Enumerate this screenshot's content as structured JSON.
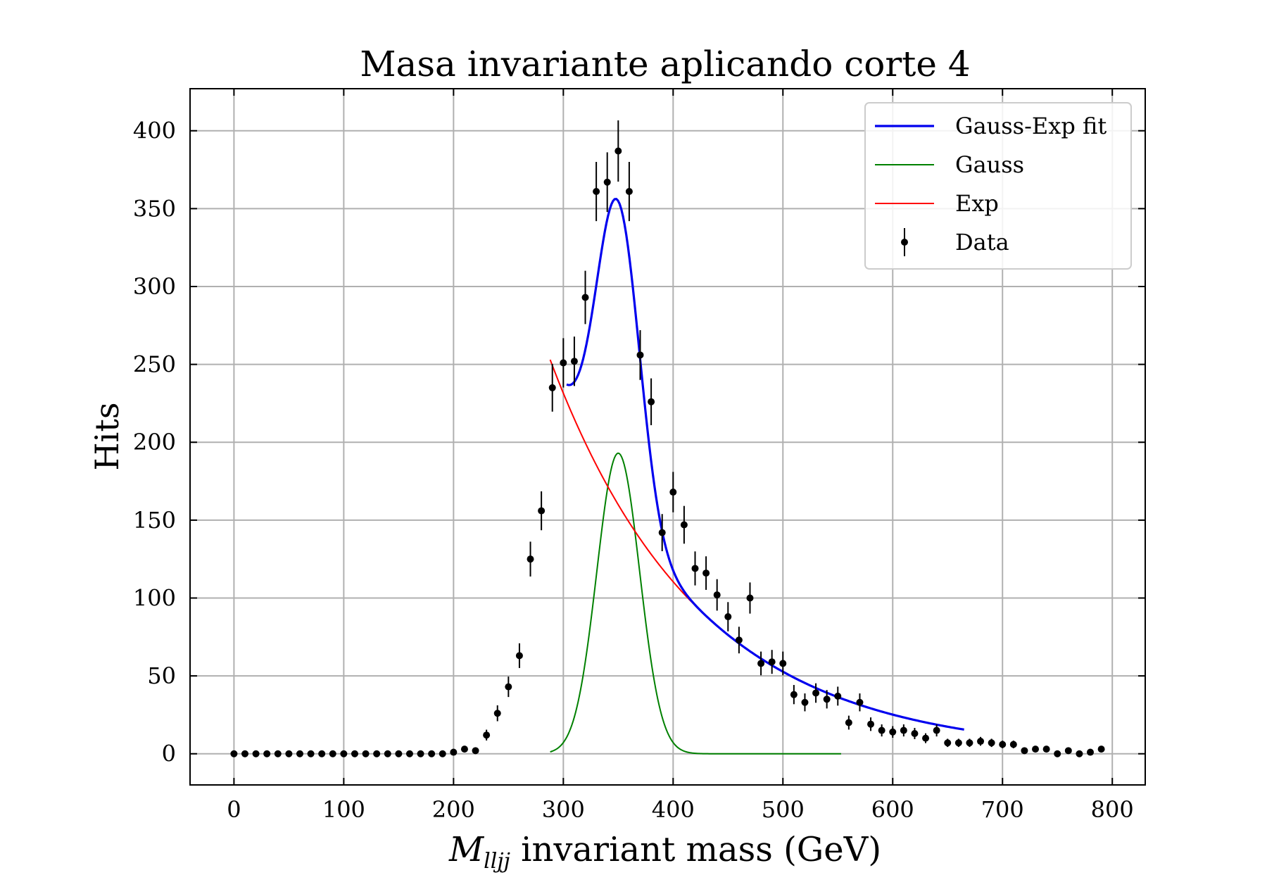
{
  "chart_data": {
    "type": "scatter",
    "title": "Masa invariante aplicando corte 4",
    "xlabel": {
      "symbol": "M",
      "subscript": "lljj",
      "text": " invariant mass (GeV)"
    },
    "ylabel": "Hits",
    "xlim": [
      -40,
      830
    ],
    "ylim": [
      -20,
      427
    ],
    "xticks": [
      0,
      100,
      200,
      300,
      400,
      500,
      600,
      700,
      800
    ],
    "xtick_labels": [
      "0",
      "100",
      "200",
      "300",
      "400",
      "500",
      "600",
      "700",
      "800"
    ],
    "yticks": [
      0,
      50,
      100,
      150,
      200,
      250,
      300,
      350,
      400
    ],
    "ytick_labels": [
      "0",
      "50",
      "100",
      "150",
      "200",
      "250",
      "300",
      "350",
      "400"
    ],
    "grid": true,
    "legend_position": "top-right",
    "legend": [
      {
        "label": "Gauss-Exp fit",
        "kind": "line",
        "color": "#0000ee"
      },
      {
        "label": "Gauss",
        "kind": "line",
        "color": "#008000"
      },
      {
        "label": "Exp",
        "kind": "line",
        "color": "#ff0000"
      },
      {
        "label": "Data",
        "kind": "errorbar",
        "color": "#000000"
      }
    ],
    "series": [
      {
        "name": "Data",
        "type": "errorbar",
        "x": [
          0,
          10,
          20,
          30,
          40,
          50,
          60,
          70,
          80,
          90,
          100,
          110,
          120,
          130,
          140,
          150,
          160,
          170,
          180,
          190,
          200,
          210,
          220,
          230,
          240,
          250,
          260,
          270,
          280,
          290,
          300,
          310,
          320,
          330,
          340,
          350,
          360,
          370,
          380,
          390,
          400,
          410,
          420,
          430,
          440,
          450,
          460,
          470,
          480,
          490,
          500,
          510,
          520,
          530,
          540,
          550,
          560,
          570,
          580,
          590,
          600,
          610,
          620,
          630,
          640,
          650,
          660,
          670,
          680,
          690,
          700,
          710,
          720,
          730,
          740,
          750,
          760,
          770,
          780,
          790
        ],
        "y": [
          0,
          0,
          0,
          0,
          0,
          0,
          0,
          0,
          0,
          0,
          0,
          0,
          0,
          0,
          0,
          0,
          0,
          0,
          0,
          0,
          1,
          3,
          2,
          12,
          26,
          43,
          63,
          125,
          156,
          235,
          251,
          252,
          293,
          361,
          367,
          387,
          361,
          256,
          226,
          142,
          168,
          147,
          119,
          116,
          102,
          88,
          73,
          100,
          58,
          59,
          58,
          38,
          33,
          39,
          35,
          37,
          20,
          33,
          19,
          15,
          14,
          15,
          13,
          10,
          15,
          7,
          7,
          7,
          8,
          7,
          6,
          6,
          2,
          3,
          3,
          0,
          2,
          0,
          1,
          3
        ],
        "yerr_rule": "sqrt(y)",
        "color": "#000000"
      },
      {
        "name": "Gauss-Exp fit",
        "type": "line",
        "function": "A*exp(-(x-mu)^2/(2*sigma^2)) + B*exp(-lambda*(x-x0))",
        "params": {
          "A": 195,
          "mu": 350,
          "sigma": 19.5,
          "B": 253,
          "lambda": 0.0074,
          "x0": 288
        },
        "x_range": [
          303,
          665
        ],
        "color": "#0000ee"
      },
      {
        "name": "Gauss",
        "type": "line",
        "function": "A*exp(-(x-mu)^2/(2*sigma^2))",
        "params": {
          "A": 193,
          "mu": 350,
          "sigma": 19.5
        },
        "x_range": [
          288,
          553
        ],
        "color": "#008000"
      },
      {
        "name": "Exp",
        "type": "line",
        "function": "B*exp(-lambda*(x-x0))",
        "params": {
          "B": 253,
          "lambda": 0.0074,
          "x0": 288
        },
        "x_range": [
          288,
          555
        ],
        "color": "#ff0000"
      }
    ]
  }
}
